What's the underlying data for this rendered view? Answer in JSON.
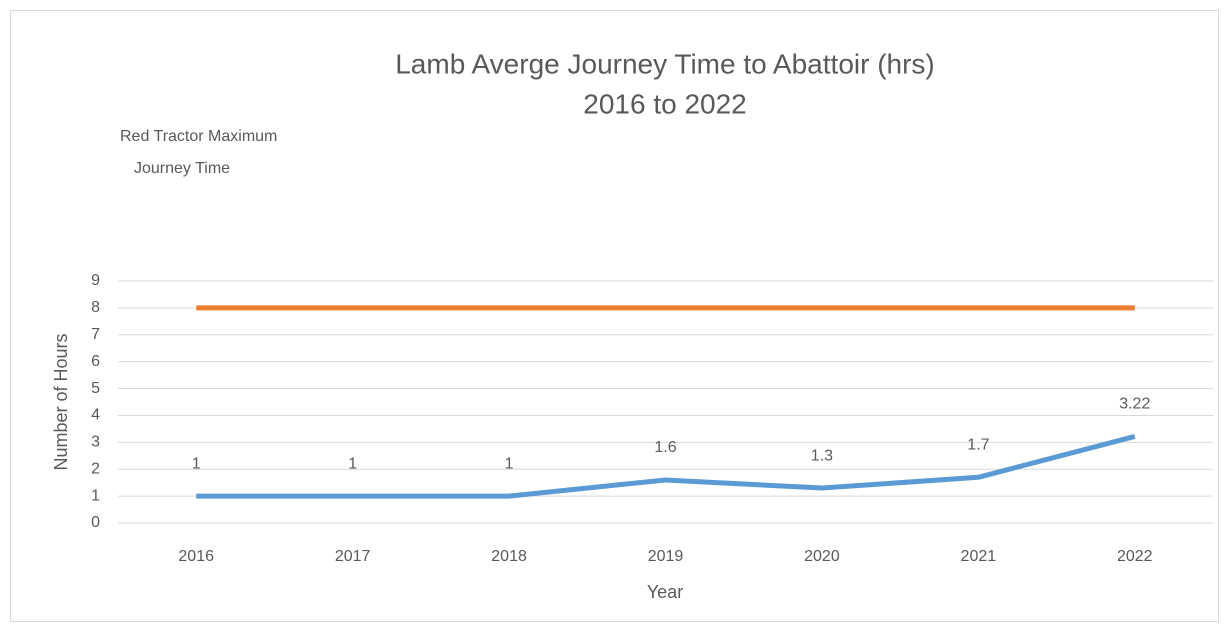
{
  "chart_data": {
    "type": "line",
    "title": [
      "Lamb Averge Journey Time to Abattoir (hrs)",
      "2016 to 2022"
    ],
    "annotation": [
      "Red Tractor Maximum",
      "Journey Time"
    ],
    "x_label": "Year",
    "y_label": "Number of Hours",
    "categories": [
      "2016",
      "2017",
      "2018",
      "2019",
      "2020",
      "2021",
      "2022"
    ],
    "series": [
      {
        "color": "#5b9bd5",
        "values": [
          1,
          1,
          1,
          1.6,
          1.3,
          1.7,
          3.22
        ],
        "data_labels": true
      },
      {
        "color": "#ed7d31",
        "values": [
          8,
          8,
          8,
          8,
          8,
          8,
          8
        ],
        "data_labels": false
      }
    ],
    "ylim": [
      0,
      9
    ],
    "yticks": [
      0,
      1,
      2,
      3,
      4,
      5,
      6,
      7,
      8,
      9
    ],
    "grid": true
  }
}
